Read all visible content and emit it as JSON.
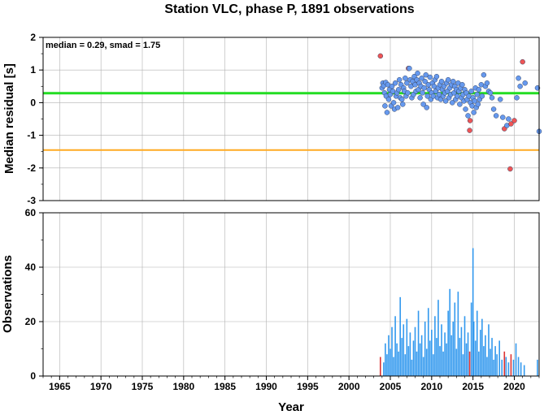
{
  "colors": {
    "median_line": "#22dd22",
    "threshold_line": "#ffaa22",
    "point_normal": "#6699ee",
    "point_outlier": "#ee5555",
    "bar_normal": "#3399ee",
    "bar_outlier": "#dd3333",
    "grid": "#b0b0b0"
  },
  "chart_data": [
    {
      "type": "scatter",
      "title": "Station VLC, phase P, 1891 observations",
      "annotation": "median = 0.29, smad = 1.75",
      "ylabel": "Median residual [s]",
      "xlim": [
        1963,
        2023
      ],
      "ylim": [
        -3,
        2
      ],
      "yticks": [
        "-3",
        "-2",
        "-1",
        "0",
        "1",
        "2"
      ],
      "grid": true,
      "hlines": [
        {
          "value": 0.29,
          "color": "median"
        },
        {
          "value": -1.45,
          "color": "threshold"
        }
      ],
      "points": [
        [
          2003.8,
          1.43,
          1
        ],
        [
          2004.0,
          0.45,
          0
        ],
        [
          2004.1,
          0.6,
          0
        ],
        [
          2004.2,
          0.52,
          0
        ],
        [
          2004.3,
          0.3,
          0
        ],
        [
          2004.35,
          -0.1,
          0
        ],
        [
          2004.45,
          0.62,
          0
        ],
        [
          2004.5,
          0.2,
          0
        ],
        [
          2004.6,
          -0.3,
          0
        ],
        [
          2004.7,
          0.55,
          0
        ],
        [
          2004.8,
          0.1,
          0
        ],
        [
          2004.9,
          0.4,
          0
        ],
        [
          2005.0,
          0.25,
          0
        ],
        [
          2005.1,
          -0.1,
          0
        ],
        [
          2005.2,
          0.5,
          0
        ],
        [
          2005.3,
          0.35,
          0
        ],
        [
          2005.4,
          0.0,
          0
        ],
        [
          2005.5,
          -0.2,
          0
        ],
        [
          2005.6,
          0.6,
          0
        ],
        [
          2005.7,
          0.2,
          0
        ],
        [
          2005.8,
          0.3,
          0
        ],
        [
          2005.9,
          -0.15,
          0
        ],
        [
          2006.0,
          0.4,
          0
        ],
        [
          2006.1,
          0.7,
          0
        ],
        [
          2006.2,
          0.15,
          0
        ],
        [
          2006.3,
          0.55,
          0
        ],
        [
          2006.4,
          0.1,
          0
        ],
        [
          2006.5,
          -0.05,
          0
        ],
        [
          2006.6,
          0.45,
          0
        ],
        [
          2006.7,
          0.35,
          0
        ],
        [
          2006.8,
          0.75,
          0
        ],
        [
          2006.9,
          0.2,
          0
        ],
        [
          2007.0,
          0.6,
          0
        ],
        [
          2007.1,
          0.3,
          0
        ],
        [
          2007.2,
          1.05,
          1
        ],
        [
          2007.3,
          1.05,
          0
        ],
        [
          2007.4,
          0.7,
          0
        ],
        [
          2007.5,
          0.5,
          0
        ],
        [
          2007.6,
          0.15,
          0
        ],
        [
          2007.7,
          0.65,
          0
        ],
        [
          2007.8,
          0.25,
          0
        ],
        [
          2007.9,
          0.8,
          0
        ],
        [
          2008.0,
          0.55,
          0
        ],
        [
          2008.1,
          0.35,
          0
        ],
        [
          2008.2,
          0.7,
          0
        ],
        [
          2008.3,
          0.9,
          0
        ],
        [
          2008.4,
          0.4,
          0
        ],
        [
          2008.5,
          0.6,
          0
        ],
        [
          2008.6,
          0.15,
          0
        ],
        [
          2008.7,
          0.5,
          0
        ],
        [
          2008.8,
          0.75,
          0
        ],
        [
          2008.9,
          0.3,
          0
        ],
        [
          2009.0,
          -0.05,
          0
        ],
        [
          2009.1,
          0.45,
          0
        ],
        [
          2009.2,
          0.65,
          0
        ],
        [
          2009.3,
          0.85,
          0
        ],
        [
          2009.4,
          -0.15,
          0
        ],
        [
          2009.5,
          0.2,
          0
        ],
        [
          2009.6,
          0.55,
          0
        ],
        [
          2009.7,
          0.4,
          0
        ],
        [
          2009.8,
          0.78,
          0
        ],
        [
          2009.9,
          0.1,
          0
        ],
        [
          2010.0,
          0.3,
          0
        ],
        [
          2010.1,
          0.6,
          0
        ],
        [
          2010.2,
          0.2,
          0
        ],
        [
          2010.3,
          0.5,
          0
        ],
        [
          2010.4,
          0.7,
          0
        ],
        [
          2010.5,
          0.35,
          0
        ],
        [
          2010.6,
          0.8,
          0
        ],
        [
          2010.7,
          0.15,
          0
        ],
        [
          2010.8,
          0.45,
          0
        ],
        [
          2010.9,
          0.25,
          0
        ],
        [
          2011.0,
          0.55,
          0
        ],
        [
          2011.1,
          0.1,
          0
        ],
        [
          2011.2,
          0.65,
          0
        ],
        [
          2011.3,
          0.4,
          0
        ],
        [
          2011.4,
          0.2,
          0
        ],
        [
          2011.5,
          0.5,
          0
        ],
        [
          2011.6,
          0.3,
          0
        ],
        [
          2011.7,
          0.05,
          0
        ],
        [
          2011.8,
          0.6,
          0
        ],
        [
          2011.9,
          0.35,
          0
        ],
        [
          2012.0,
          0.7,
          0
        ],
        [
          2012.1,
          0.15,
          0
        ],
        [
          2012.2,
          0.45,
          0
        ],
        [
          2012.3,
          0.25,
          0
        ],
        [
          2012.4,
          0.55,
          0
        ],
        [
          2012.5,
          0.0,
          0
        ],
        [
          2012.6,
          0.65,
          0
        ],
        [
          2012.7,
          0.3,
          0
        ],
        [
          2012.8,
          0.5,
          0
        ],
        [
          2012.9,
          0.1,
          0
        ],
        [
          2013.0,
          0.4,
          0
        ],
        [
          2013.1,
          0.2,
          0
        ],
        [
          2013.2,
          0.6,
          0
        ],
        [
          2013.3,
          0.35,
          0
        ],
        [
          2013.4,
          -0.05,
          0
        ],
        [
          2013.5,
          0.45,
          0
        ],
        [
          2013.6,
          0.15,
          0
        ],
        [
          2013.7,
          0.55,
          0
        ],
        [
          2013.8,
          0.25,
          0
        ],
        [
          2013.9,
          0.05,
          0
        ],
        [
          2014.0,
          0.4,
          0
        ],
        [
          2014.1,
          -0.2,
          0
        ],
        [
          2014.2,
          0.3,
          0
        ],
        [
          2014.3,
          0.1,
          0
        ],
        [
          2014.4,
          -0.4,
          0
        ],
        [
          2014.5,
          0.2,
          0
        ],
        [
          2014.6,
          -0.85,
          1
        ],
        [
          2014.65,
          -0.55,
          1
        ],
        [
          2014.7,
          0.0,
          0
        ],
        [
          2014.8,
          0.35,
          0
        ],
        [
          2014.9,
          -0.1,
          0
        ],
        [
          2015.0,
          0.15,
          0
        ],
        [
          2015.1,
          -0.3,
          0
        ],
        [
          2015.2,
          0.05,
          0
        ],
        [
          2015.3,
          0.45,
          0
        ],
        [
          2015.4,
          -0.15,
          0
        ],
        [
          2015.5,
          0.25,
          0
        ],
        [
          2015.6,
          -0.05,
          0
        ],
        [
          2015.7,
          0.4,
          0
        ],
        [
          2015.8,
          0.1,
          0
        ],
        [
          2016.0,
          0.55,
          0
        ],
        [
          2016.1,
          0.2,
          0
        ],
        [
          2016.3,
          0.85,
          0
        ],
        [
          2016.5,
          0.5,
          0
        ],
        [
          2016.7,
          0.6,
          0
        ],
        [
          2016.9,
          0.35,
          0
        ],
        [
          2017.1,
          0.3,
          0
        ],
        [
          2017.3,
          0.15,
          0
        ],
        [
          2017.5,
          -0.2,
          0
        ],
        [
          2017.8,
          -0.4,
          0
        ],
        [
          2018.3,
          0.1,
          0
        ],
        [
          2018.6,
          -0.45,
          0
        ],
        [
          2018.8,
          -0.8,
          1
        ],
        [
          2019.1,
          -0.7,
          0
        ],
        [
          2019.3,
          -0.5,
          0
        ],
        [
          2019.5,
          -2.03,
          1
        ],
        [
          2019.6,
          -0.65,
          1
        ],
        [
          2020.0,
          -0.55,
          1
        ],
        [
          2020.3,
          0.15,
          0
        ],
        [
          2020.5,
          0.75,
          0
        ],
        [
          2020.7,
          0.5,
          0
        ],
        [
          2021.0,
          1.25,
          1
        ],
        [
          2021.3,
          0.6,
          0
        ],
        [
          2022.8,
          0.45,
          0
        ],
        [
          2023.0,
          -0.88,
          0
        ]
      ]
    },
    {
      "type": "bar",
      "ylabel": "Observations",
      "xlabel": "Year",
      "xlim": [
        1963,
        2023
      ],
      "ylim": [
        0,
        60
      ],
      "xticks": [
        "1965",
        "1970",
        "1975",
        "1980",
        "1985",
        "1990",
        "1995",
        "2000",
        "2005",
        "2010",
        "2015",
        "2020"
      ],
      "yticks": [
        "0",
        "20",
        "40",
        "60"
      ],
      "grid": true,
      "bars": [
        [
          2003.8,
          7,
          1
        ],
        [
          2004.2,
          5,
          0
        ],
        [
          2004.4,
          12,
          0
        ],
        [
          2004.6,
          8,
          0
        ],
        [
          2004.8,
          15,
          0
        ],
        [
          2005.0,
          10,
          0
        ],
        [
          2005.2,
          18,
          0
        ],
        [
          2005.4,
          7,
          0
        ],
        [
          2005.6,
          22,
          0
        ],
        [
          2005.8,
          12,
          0
        ],
        [
          2006.0,
          9,
          0
        ],
        [
          2006.2,
          29,
          0
        ],
        [
          2006.4,
          14,
          0
        ],
        [
          2006.6,
          19,
          0
        ],
        [
          2006.8,
          8,
          0
        ],
        [
          2007.0,
          21,
          0
        ],
        [
          2007.2,
          11,
          0
        ],
        [
          2007.4,
          16,
          0
        ],
        [
          2007.6,
          6,
          0
        ],
        [
          2007.8,
          13,
          0
        ],
        [
          2008.0,
          18,
          0
        ],
        [
          2008.2,
          9,
          0
        ],
        [
          2008.4,
          24,
          0
        ],
        [
          2008.6,
          12,
          0
        ],
        [
          2008.8,
          15,
          0
        ],
        [
          2009.0,
          7,
          0
        ],
        [
          2009.2,
          20,
          0
        ],
        [
          2009.4,
          10,
          0
        ],
        [
          2009.6,
          25,
          0
        ],
        [
          2009.8,
          13,
          0
        ],
        [
          2010.0,
          17,
          0
        ],
        [
          2010.2,
          8,
          0
        ],
        [
          2010.4,
          22,
          0
        ],
        [
          2010.6,
          14,
          0
        ],
        [
          2010.8,
          28,
          0
        ],
        [
          2011.0,
          11,
          0
        ],
        [
          2011.2,
          19,
          0
        ],
        [
          2011.4,
          9,
          0
        ],
        [
          2011.6,
          16,
          0
        ],
        [
          2011.8,
          12,
          0
        ],
        [
          2012.0,
          24,
          0
        ],
        [
          2012.2,
          32,
          0
        ],
        [
          2012.4,
          15,
          0
        ],
        [
          2012.6,
          20,
          0
        ],
        [
          2012.8,
          27,
          0
        ],
        [
          2013.0,
          10,
          0
        ],
        [
          2013.2,
          31,
          0
        ],
        [
          2013.4,
          14,
          0
        ],
        [
          2013.6,
          18,
          0
        ],
        [
          2013.8,
          8,
          0
        ],
        [
          2014.0,
          22,
          0
        ],
        [
          2014.2,
          12,
          0
        ],
        [
          2014.4,
          16,
          0
        ],
        [
          2014.6,
          9,
          1
        ],
        [
          2014.8,
          27,
          0
        ],
        [
          2015.0,
          47,
          0
        ],
        [
          2015.1,
          20,
          0
        ],
        [
          2015.3,
          13,
          0
        ],
        [
          2015.5,
          24,
          0
        ],
        [
          2015.7,
          9,
          0
        ],
        [
          2015.9,
          17,
          0
        ],
        [
          2016.1,
          21,
          0
        ],
        [
          2016.3,
          11,
          0
        ],
        [
          2016.5,
          15,
          0
        ],
        [
          2016.7,
          7,
          0
        ],
        [
          2016.9,
          19,
          0
        ],
        [
          2017.1,
          10,
          0
        ],
        [
          2017.3,
          14,
          0
        ],
        [
          2017.5,
          6,
          0
        ],
        [
          2017.7,
          11,
          0
        ],
        [
          2017.9,
          8,
          0
        ],
        [
          2018.2,
          13,
          0
        ],
        [
          2018.5,
          6,
          0
        ],
        [
          2018.8,
          9,
          1
        ],
        [
          2019.0,
          7,
          0
        ],
        [
          2019.3,
          5,
          0
        ],
        [
          2019.6,
          8,
          1
        ],
        [
          2019.9,
          6,
          0
        ],
        [
          2020.2,
          12,
          0
        ],
        [
          2020.5,
          7,
          0
        ],
        [
          2020.8,
          5,
          0
        ],
        [
          2021.2,
          4,
          0
        ],
        [
          2022.8,
          6,
          0
        ]
      ]
    }
  ]
}
